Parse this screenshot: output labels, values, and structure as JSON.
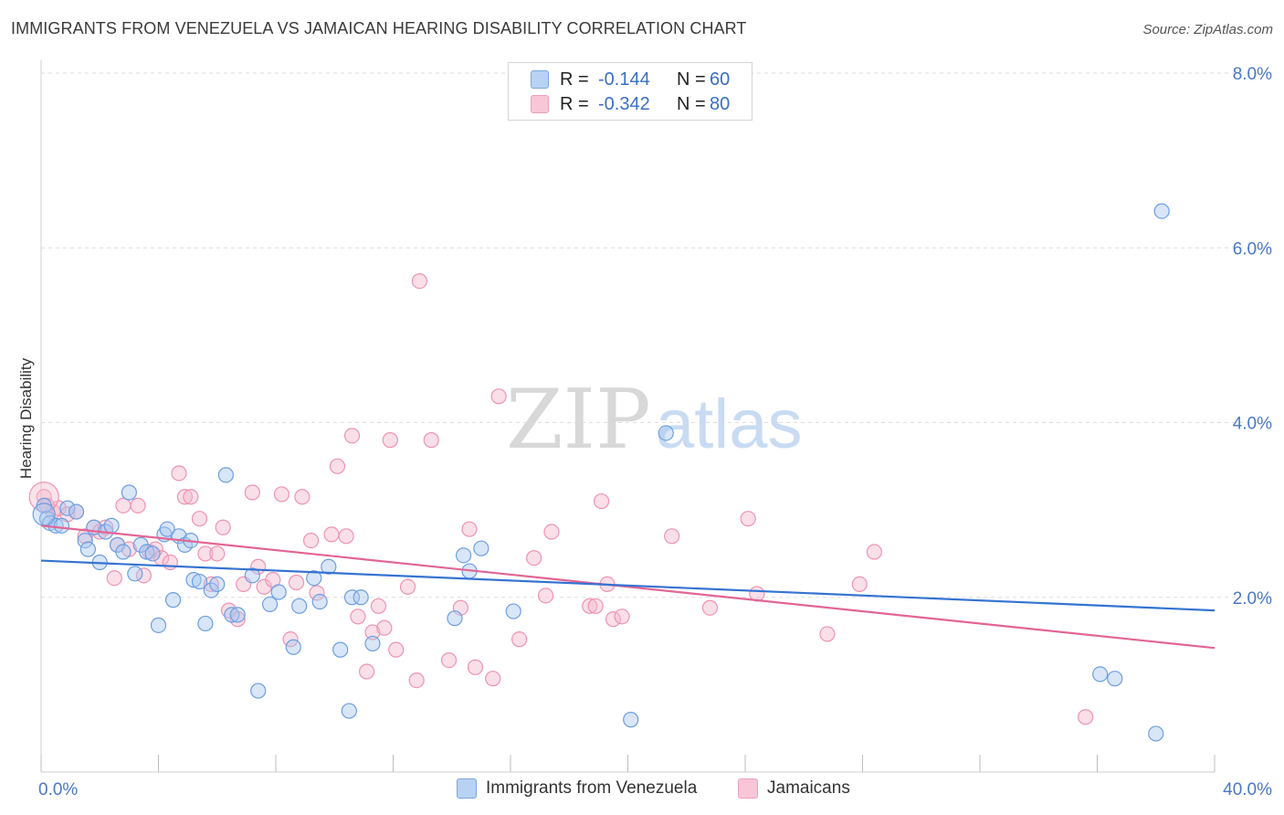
{
  "title": "IMMIGRANTS FROM VENEZUELA VS JAMAICAN HEARING DISABILITY CORRELATION CHART",
  "source": "Source: ZipAtlas.com",
  "watermark": {
    "part1": "ZIP",
    "part2": "atlas"
  },
  "colors": {
    "blue_fill": "#a9c7ef",
    "blue_stroke": "#6d9ee0",
    "blue_line": "#3573d1",
    "pink_fill": "#f5b9cd",
    "pink_stroke": "#ee93b2",
    "pink_line": "#e26594",
    "grid": "#dedede",
    "axis_text": "#4a78c4"
  },
  "legend": {
    "rows": [
      {
        "r_label": "R =",
        "r_value": "-0.144",
        "n_label": "N =",
        "n_value": "60",
        "color": "blue"
      },
      {
        "r_label": "R =",
        "r_value": "-0.342",
        "n_label": "N =",
        "n_value": "80",
        "color": "pink"
      }
    ]
  },
  "chart_data": {
    "type": "scatter",
    "xlabel": "",
    "ylabel": "Hearing Disability",
    "xlim": [
      0,
      40
    ],
    "ylim": [
      0,
      8
    ],
    "x_tick_labels": [
      "0.0%",
      "40.0%"
    ],
    "y_ticks": [
      {
        "value": 2,
        "label": "2.0%"
      },
      {
        "value": 4,
        "label": "4.0%"
      },
      {
        "value": 6,
        "label": "6.0%"
      },
      {
        "value": 8,
        "label": "8.0%"
      }
    ],
    "x_minor_ticks": [
      0,
      4,
      8,
      12,
      16,
      20,
      24,
      28,
      32,
      36,
      40
    ],
    "grid": true,
    "series": [
      {
        "name": "Immigrants from Venezuela",
        "color": "blue",
        "trend": {
          "x": [
            0,
            40
          ],
          "y": [
            2.42,
            1.85
          ]
        },
        "points": [
          [
            0.1,
            3.05
          ],
          [
            0.2,
            2.9
          ],
          [
            0.3,
            2.85
          ],
          [
            0.5,
            2.82
          ],
          [
            0.7,
            2.82
          ],
          [
            0.9,
            3.02
          ],
          [
            1.2,
            2.98
          ],
          [
            1.5,
            2.65
          ],
          [
            1.6,
            2.55
          ],
          [
            1.8,
            2.8
          ],
          [
            2.0,
            2.4
          ],
          [
            2.2,
            2.75
          ],
          [
            2.4,
            2.82
          ],
          [
            2.6,
            2.6
          ],
          [
            2.8,
            2.52
          ],
          [
            3.0,
            3.2
          ],
          [
            3.2,
            2.27
          ],
          [
            3.4,
            2.6
          ],
          [
            3.6,
            2.52
          ],
          [
            3.8,
            2.5
          ],
          [
            4.0,
            1.68
          ],
          [
            4.2,
            2.72
          ],
          [
            4.3,
            2.78
          ],
          [
            4.5,
            1.97
          ],
          [
            4.7,
            2.7
          ],
          [
            4.9,
            2.6
          ],
          [
            5.1,
            2.65
          ],
          [
            5.2,
            2.2
          ],
          [
            5.4,
            2.18
          ],
          [
            5.6,
            1.7
          ],
          [
            5.8,
            2.08
          ],
          [
            6.0,
            2.15
          ],
          [
            6.3,
            3.4
          ],
          [
            6.5,
            1.8
          ],
          [
            6.7,
            1.8
          ],
          [
            7.2,
            2.25
          ],
          [
            7.4,
            0.93
          ],
          [
            7.8,
            1.92
          ],
          [
            8.1,
            2.06
          ],
          [
            8.6,
            1.43
          ],
          [
            8.8,
            1.9
          ],
          [
            9.3,
            2.22
          ],
          [
            9.5,
            1.95
          ],
          [
            9.8,
            2.35
          ],
          [
            10.2,
            1.4
          ],
          [
            10.5,
            0.7
          ],
          [
            10.6,
            2.0
          ],
          [
            10.9,
            2.0
          ],
          [
            11.3,
            1.47
          ],
          [
            14.1,
            1.76
          ],
          [
            14.4,
            2.48
          ],
          [
            14.6,
            2.3
          ],
          [
            15.0,
            2.56
          ],
          [
            16.1,
            1.84
          ],
          [
            20.1,
            0.6
          ],
          [
            21.3,
            3.88
          ],
          [
            38.2,
            6.42
          ],
          [
            36.1,
            1.12
          ],
          [
            36.6,
            1.07
          ],
          [
            38.0,
            0.44
          ]
        ]
      },
      {
        "name": "Jamaicans",
        "color": "pink",
        "trend": {
          "x": [
            0,
            40
          ],
          "y": [
            2.82,
            1.42
          ]
        },
        "points": [
          [
            0.1,
            3.15
          ],
          [
            0.4,
            2.98
          ],
          [
            0.6,
            3.02
          ],
          [
            0.9,
            2.95
          ],
          [
            1.2,
            2.98
          ],
          [
            1.5,
            2.7
          ],
          [
            1.8,
            2.8
          ],
          [
            2.0,
            2.75
          ],
          [
            2.2,
            2.8
          ],
          [
            2.5,
            2.22
          ],
          [
            2.6,
            2.6
          ],
          [
            2.8,
            3.05
          ],
          [
            3.0,
            2.55
          ],
          [
            3.3,
            3.05
          ],
          [
            3.5,
            2.25
          ],
          [
            3.7,
            2.52
          ],
          [
            3.9,
            2.55
          ],
          [
            4.1,
            2.45
          ],
          [
            4.4,
            2.4
          ],
          [
            4.7,
            3.42
          ],
          [
            4.9,
            3.15
          ],
          [
            5.1,
            3.15
          ],
          [
            5.4,
            2.9
          ],
          [
            5.6,
            2.5
          ],
          [
            5.8,
            2.15
          ],
          [
            6.0,
            2.5
          ],
          [
            6.2,
            2.8
          ],
          [
            6.4,
            1.85
          ],
          [
            6.7,
            1.75
          ],
          [
            6.9,
            2.15
          ],
          [
            7.2,
            3.2
          ],
          [
            7.4,
            2.35
          ],
          [
            7.6,
            2.12
          ],
          [
            7.9,
            2.2
          ],
          [
            8.2,
            3.18
          ],
          [
            8.5,
            1.52
          ],
          [
            8.7,
            2.17
          ],
          [
            8.9,
            3.15
          ],
          [
            9.2,
            2.65
          ],
          [
            9.4,
            2.05
          ],
          [
            9.9,
            2.72
          ],
          [
            10.1,
            3.5
          ],
          [
            10.4,
            2.7
          ],
          [
            10.6,
            3.85
          ],
          [
            10.8,
            1.78
          ],
          [
            11.1,
            1.15
          ],
          [
            11.3,
            1.6
          ],
          [
            11.5,
            1.9
          ],
          [
            11.7,
            1.65
          ],
          [
            11.9,
            3.8
          ],
          [
            12.1,
            1.4
          ],
          [
            12.5,
            2.12
          ],
          [
            12.8,
            1.05
          ],
          [
            12.9,
            5.62
          ],
          [
            13.3,
            3.8
          ],
          [
            13.9,
            1.28
          ],
          [
            14.3,
            1.88
          ],
          [
            14.6,
            2.78
          ],
          [
            14.8,
            1.2
          ],
          [
            15.4,
            1.07
          ],
          [
            15.6,
            4.3
          ],
          [
            16.3,
            1.52
          ],
          [
            16.8,
            2.45
          ],
          [
            17.2,
            2.02
          ],
          [
            17.4,
            2.75
          ],
          [
            18.7,
            1.9
          ],
          [
            18.9,
            1.9
          ],
          [
            19.1,
            3.1
          ],
          [
            19.3,
            2.15
          ],
          [
            19.5,
            1.75
          ],
          [
            19.8,
            1.78
          ],
          [
            21.5,
            2.7
          ],
          [
            22.8,
            1.88
          ],
          [
            24.1,
            2.9
          ],
          [
            24.4,
            2.04
          ],
          [
            26.8,
            1.58
          ],
          [
            27.9,
            2.15
          ],
          [
            28.4,
            2.52
          ],
          [
            35.6,
            0.63
          ],
          [
            0.2,
            3.05
          ]
        ]
      }
    ]
  }
}
